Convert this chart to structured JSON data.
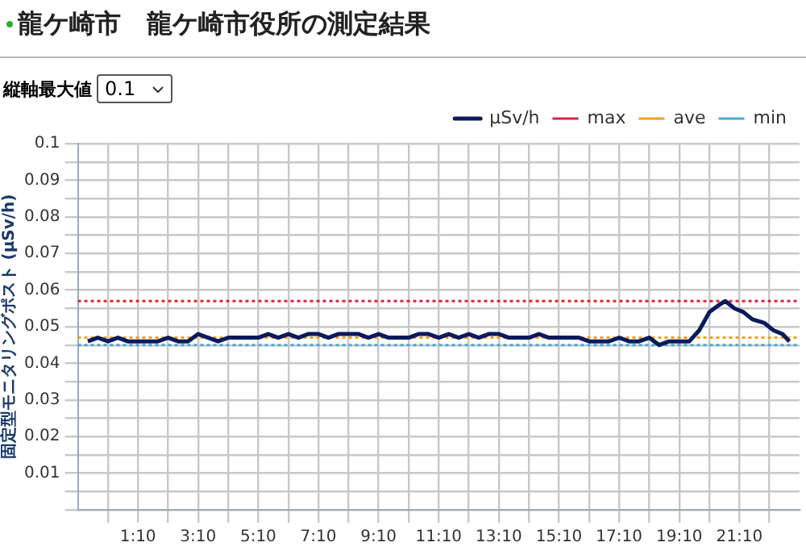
{
  "chart_data": {
    "type": "line",
    "title": "龍ケ崎市　龍ケ崎市役所の測定結果",
    "ylabel": "固定型モニタリングポスト (μSv/h)",
    "annotations": [
      "縦軸最大値",
      "0.1"
    ],
    "x": [
      -0.5,
      -0.17,
      0.17,
      0.5,
      0.83,
      1.17,
      1.5,
      1.83,
      2.17,
      2.5,
      2.83,
      3.17,
      3.5,
      3.83,
      4.17,
      4.5,
      4.83,
      5.17,
      5.5,
      5.83,
      6.17,
      6.5,
      6.83,
      7.17,
      7.5,
      7.83,
      8.17,
      8.5,
      8.83,
      9.17,
      9.5,
      9.83,
      10.17,
      10.5,
      10.83,
      11.17,
      11.5,
      11.83,
      12.17,
      12.5,
      12.83,
      13.17,
      13.5,
      13.83,
      14.17,
      14.5,
      14.83,
      15.17,
      15.5,
      15.83,
      16.17,
      16.5,
      16.83,
      17.17,
      17.5,
      17.83,
      18.17,
      18.5,
      18.83,
      19.17,
      19.5,
      19.83,
      20.17,
      20.5,
      20.7,
      21.0,
      21.3,
      21.6,
      22.0,
      22.3,
      22.6,
      22.83
    ],
    "series": [
      {
        "name": "μSv/h",
        "color": "#0a1a5c",
        "values": [
          0.046,
          0.047,
          0.046,
          0.047,
          0.046,
          0.046,
          0.046,
          0.046,
          0.047,
          0.046,
          0.046,
          0.048,
          0.047,
          0.046,
          0.047,
          0.047,
          0.047,
          0.047,
          0.048,
          0.047,
          0.048,
          0.047,
          0.048,
          0.048,
          0.047,
          0.048,
          0.048,
          0.048,
          0.047,
          0.048,
          0.047,
          0.047,
          0.047,
          0.048,
          0.048,
          0.047,
          0.048,
          0.047,
          0.048,
          0.047,
          0.048,
          0.048,
          0.047,
          0.047,
          0.047,
          0.048,
          0.047,
          0.047,
          0.047,
          0.047,
          0.046,
          0.046,
          0.046,
          0.047,
          0.046,
          0.046,
          0.047,
          0.045,
          0.046,
          0.046,
          0.046,
          0.049,
          0.054,
          0.056,
          0.057,
          0.055,
          0.054,
          0.052,
          0.051,
          0.049,
          0.048,
          0.046
        ]
      }
    ],
    "ref_lines": [
      {
        "axis": "y",
        "value": 0.057,
        "label": "max",
        "color": "#d6263c",
        "line_style": "dotted"
      },
      {
        "axis": "y",
        "value": 0.047,
        "label": "ave",
        "color": "#f0a020",
        "line_style": "dotted"
      },
      {
        "axis": "y",
        "value": 0.045,
        "label": "min",
        "color": "#4aa8d8",
        "line_style": "dotted"
      }
    ],
    "xlim": [
      -0.8333,
      23.1667
    ],
    "xticks": [
      {
        "value": 0.1667,
        "label": null
      },
      {
        "value": 1.1667,
        "label": "1:10"
      },
      {
        "value": 2.1667,
        "label": null
      },
      {
        "value": 3.1667,
        "label": "3:10"
      },
      {
        "value": 4.1667,
        "label": null
      },
      {
        "value": 5.1667,
        "label": "5:10"
      },
      {
        "value": 6.1667,
        "label": null
      },
      {
        "value": 7.1667,
        "label": "7:10"
      },
      {
        "value": 8.1667,
        "label": null
      },
      {
        "value": 9.1667,
        "label": "9:10"
      },
      {
        "value": 10.1667,
        "label": null
      },
      {
        "value": 11.1667,
        "label": "11:10"
      },
      {
        "value": 12.1667,
        "label": null
      },
      {
        "value": 13.1667,
        "label": "13:10"
      },
      {
        "value": 14.1667,
        "label": null
      },
      {
        "value": 15.1667,
        "label": "15:10"
      },
      {
        "value": 16.1667,
        "label": null
      },
      {
        "value": 17.1667,
        "label": "17:10"
      },
      {
        "value": 18.1667,
        "label": null
      },
      {
        "value": 19.1667,
        "label": "19:10"
      },
      {
        "value": 20.1667,
        "label": null
      },
      {
        "value": 21.1667,
        "label": "21:10"
      },
      {
        "value": 22.1667,
        "label": null
      }
    ],
    "ylim": [
      0,
      0.1
    ],
    "yticks": [
      {
        "value": 0,
        "label": null
      },
      {
        "value": 0.005,
        "label": null
      },
      0.01,
      {
        "value": 0.015,
        "label": null
      },
      0.02,
      {
        "value": 0.025,
        "label": null
      },
      0.03,
      {
        "value": 0.035,
        "label": null
      },
      0.04,
      {
        "value": 0.045,
        "label": null
      },
      0.05,
      {
        "value": 0.055,
        "label": null
      },
      0.06,
      {
        "value": 0.065,
        "label": null
      },
      0.07,
      {
        "value": 0.075,
        "label": null
      },
      0.08,
      {
        "value": 0.085,
        "label": null
      },
      0.09,
      {
        "value": 0.095,
        "label": null
      },
      0.1
    ],
    "grid": true,
    "legend": "top right",
    "marker": "none",
    "line_style": "solid"
  }
}
